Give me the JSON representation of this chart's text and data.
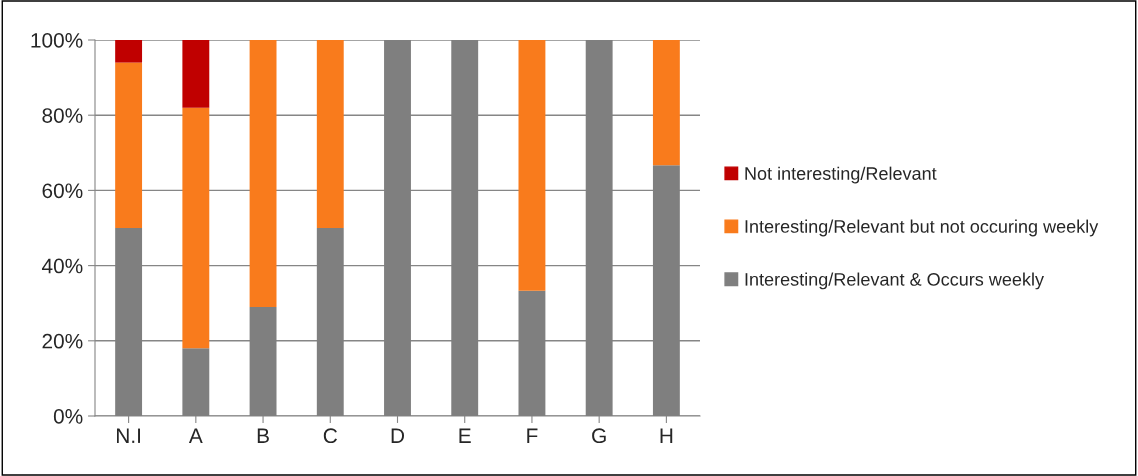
{
  "chart_data": {
    "type": "bar",
    "stacked": true,
    "categories": [
      "N.I",
      "A",
      "B",
      "C",
      "D",
      "E",
      "F",
      "G",
      "H"
    ],
    "series": [
      {
        "name": "Interesting/Relevant & Occurs weekly",
        "color": "#7f7f7f",
        "values": [
          50,
          18,
          29,
          50,
          100,
          100,
          33.3,
          100,
          66.7
        ]
      },
      {
        "name": "Interesting/Relevant but not occuring weekly",
        "color": "#f97b1c",
        "values": [
          44,
          64,
          71,
          50,
          0,
          0,
          66.7,
          0,
          33.3
        ]
      },
      {
        "name": "Not interesting/Relevant",
        "color": "#c00000",
        "values": [
          6,
          18,
          0,
          0,
          0,
          0,
          0,
          0,
          0
        ]
      }
    ],
    "ylim": [
      0,
      100
    ],
    "yticks": [
      {
        "value": 0,
        "label": "0%"
      },
      {
        "value": 20,
        "label": "20%"
      },
      {
        "value": 40,
        "label": "40%"
      },
      {
        "value": 60,
        "label": "60%"
      },
      {
        "value": 80,
        "label": "80%"
      },
      {
        "value": 100,
        "label": "100%"
      }
    ],
    "grid": "y",
    "legend": "right",
    "marker": "square"
  }
}
